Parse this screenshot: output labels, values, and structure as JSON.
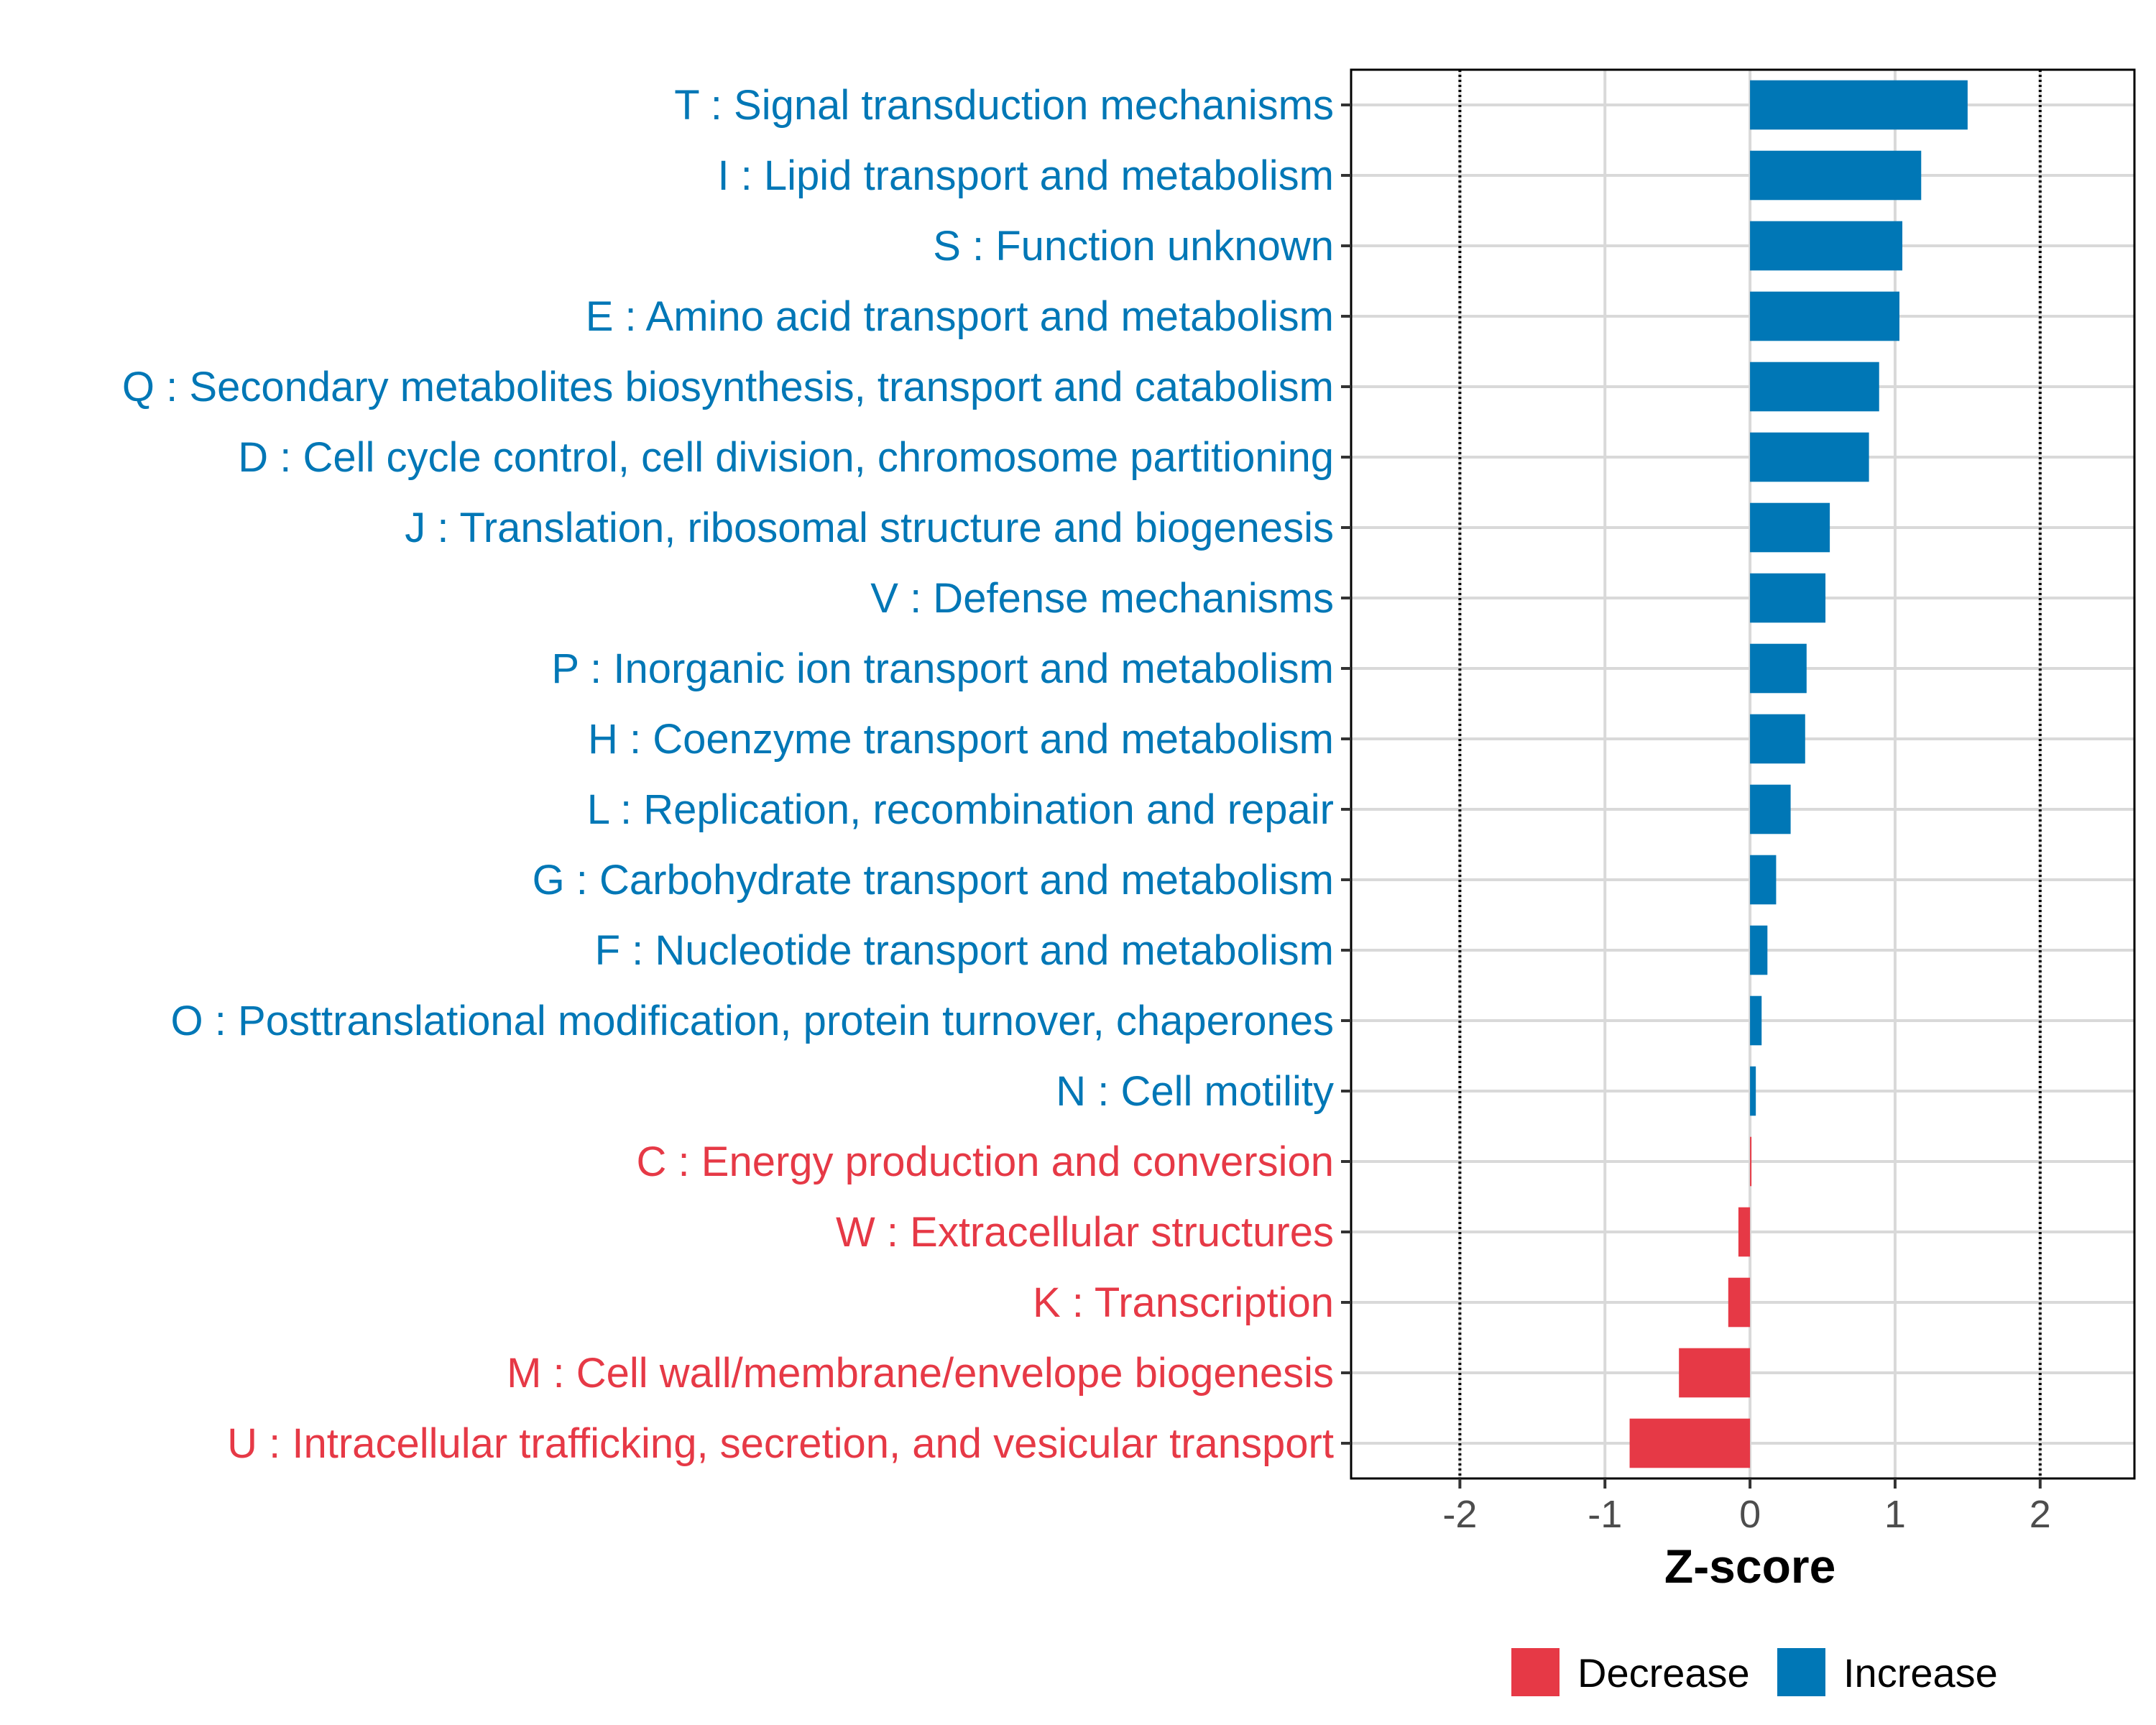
{
  "chart_data": {
    "type": "bar",
    "orientation": "horizontal",
    "title": "",
    "xlabel": "Z-score",
    "ylabel": "",
    "xlim": [
      -2.75,
      2.65
    ],
    "xticks": [
      -2,
      -1,
      0,
      1,
      2
    ],
    "xtick_labels": [
      "-2",
      "-1",
      "0",
      "1",
      "2"
    ],
    "reference_lines": [
      -2,
      2
    ],
    "grid": true,
    "categories": [
      "T : Signal transduction mechanisms",
      "I : Lipid transport and metabolism",
      "S : Function unknown",
      "E : Amino acid transport and metabolism",
      "Q : Secondary metabolites biosynthesis, transport and catabolism",
      "D : Cell cycle control, cell division, chromosome partitioning",
      "J : Translation, ribosomal structure and biogenesis",
      "V : Defense mechanisms",
      "P : Inorganic ion transport and metabolism",
      "H : Coenzyme transport and metabolism",
      "L : Replication, recombination and repair",
      "G : Carbohydrate transport and metabolism",
      "F : Nucleotide transport and metabolism",
      "O : Posttranslational modification, protein turnover, chaperones",
      "N : Cell motility",
      "C : Energy production and conversion",
      "W : Extracellular structures",
      "K : Transcription",
      "M : Cell wall/membrane/envelope biogenesis",
      "U : Intracellular trafficking, secretion, and vesicular transport"
    ],
    "values": [
      1.5,
      1.18,
      1.05,
      1.03,
      0.89,
      0.82,
      0.55,
      0.52,
      0.39,
      0.38,
      0.28,
      0.18,
      0.12,
      0.08,
      0.04,
      0.01,
      -0.08,
      -0.15,
      -0.49,
      -0.83
    ],
    "groups": [
      "Increase",
      "Increase",
      "Increase",
      "Increase",
      "Increase",
      "Increase",
      "Increase",
      "Increase",
      "Increase",
      "Increase",
      "Increase",
      "Increase",
      "Increase",
      "Increase",
      "Increase",
      "Decrease",
      "Decrease",
      "Decrease",
      "Decrease",
      "Decrease"
    ],
    "legend": {
      "position": "bottom",
      "entries": [
        {
          "label": "Decrease",
          "color": "#E63946"
        },
        {
          "label": "Increase",
          "color": "#0077B6"
        }
      ]
    },
    "colors": {
      "Increase": "#0077B6",
      "Decrease": "#E63946"
    }
  }
}
